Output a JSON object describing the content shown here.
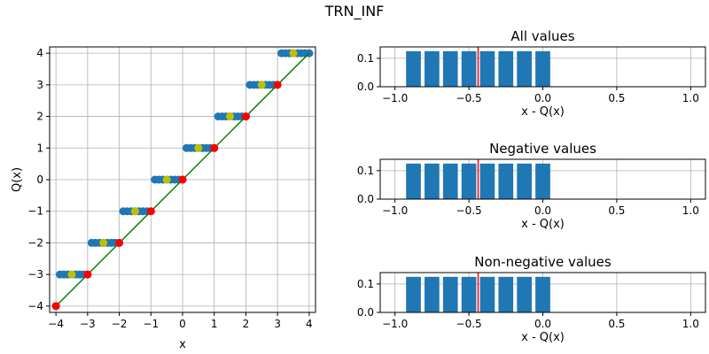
{
  "suptitle": "TRN_INF",
  "colors": {
    "blue": "#1f77b4",
    "red": "#ff0000",
    "yellow": "#bfbf00",
    "green": "#008000",
    "grid": "#b0b0b0"
  },
  "chart_data": [
    {
      "type": "scatter",
      "xlabel": "x",
      "ylabel": "Q(x)",
      "xlim": [
        -4.2,
        4.2
      ],
      "ylim": [
        -4.2,
        4.2
      ],
      "xticks": [
        -4,
        -3,
        -2,
        -1,
        0,
        1,
        2,
        3,
        4
      ],
      "yticks": [
        -4,
        -3,
        -2,
        -1,
        0,
        1,
        2,
        3,
        4
      ],
      "grid": true,
      "line": {
        "x": [
          -4,
          4
        ],
        "y": [
          -4,
          4
        ]
      },
      "blue_points": {
        "x_start": -4,
        "x_end": 4,
        "step": 0.125,
        "rule": "ceil"
      },
      "red_points": {
        "x": [
          -4,
          -3,
          -2,
          -1,
          0,
          1,
          2,
          3
        ],
        "y": [
          -4,
          -3,
          -2,
          -1,
          0,
          1,
          2,
          3
        ]
      },
      "yellow_points": {
        "x": [
          -3.5,
          -2.5,
          -1.5,
          -0.5,
          0.5,
          1.5,
          2.5,
          3.5
        ],
        "y": [
          -3,
          -2,
          -1,
          0,
          1,
          2,
          3,
          4
        ]
      }
    },
    {
      "type": "bar",
      "title": "All values",
      "xlabel": "x - Q(x)",
      "categories": [
        -0.875,
        -0.75,
        -0.625,
        -0.5,
        -0.375,
        -0.25,
        -0.125,
        0.0
      ],
      "values": [
        0.125,
        0.125,
        0.125,
        0.125,
        0.125,
        0.125,
        0.125,
        0.125
      ],
      "bar_width": 0.1,
      "mean_line": -0.4375,
      "xlim": [
        -1.1,
        1.1
      ],
      "ylim": [
        0,
        0.14
      ],
      "xticks": [
        "−1.0",
        "−0.5",
        "0.0",
        "0.5",
        "1.0"
      ],
      "xtick_values": [
        -1,
        -0.5,
        0,
        0.5,
        1
      ],
      "yticks": [
        "0.0",
        "0.1"
      ],
      "ytick_values": [
        0,
        0.1
      ],
      "grid": true
    },
    {
      "type": "bar",
      "title": "Negative values",
      "xlabel": "x - Q(x)",
      "categories": [
        -0.875,
        -0.75,
        -0.625,
        -0.5,
        -0.375,
        -0.25,
        -0.125,
        0.0
      ],
      "values": [
        0.125,
        0.125,
        0.125,
        0.125,
        0.125,
        0.125,
        0.125,
        0.125
      ],
      "bar_width": 0.1,
      "mean_line": -0.4375,
      "xlim": [
        -1.1,
        1.1
      ],
      "ylim": [
        0,
        0.14
      ],
      "xticks": [
        "−1.0",
        "−0.5",
        "0.0",
        "0.5",
        "1.0"
      ],
      "xtick_values": [
        -1,
        -0.5,
        0,
        0.5,
        1
      ],
      "yticks": [
        "0.0",
        "0.1"
      ],
      "ytick_values": [
        0,
        0.1
      ],
      "grid": true
    },
    {
      "type": "bar",
      "title": "Non-negative values",
      "xlabel": "x - Q(x)",
      "categories": [
        -0.875,
        -0.75,
        -0.625,
        -0.5,
        -0.375,
        -0.25,
        -0.125,
        0.0
      ],
      "values": [
        0.125,
        0.125,
        0.125,
        0.125,
        0.125,
        0.125,
        0.125,
        0.125
      ],
      "bar_width": 0.1,
      "mean_line": -0.4375,
      "xlim": [
        -1.1,
        1.1
      ],
      "ylim": [
        0,
        0.14
      ],
      "xticks": [
        "−1.0",
        "−0.5",
        "0.0",
        "0.5",
        "1.0"
      ],
      "xtick_values": [
        -1,
        -0.5,
        0,
        0.5,
        1
      ],
      "yticks": [
        "0.0",
        "0.1"
      ],
      "ytick_values": [
        0,
        0.1
      ],
      "grid": true
    }
  ]
}
